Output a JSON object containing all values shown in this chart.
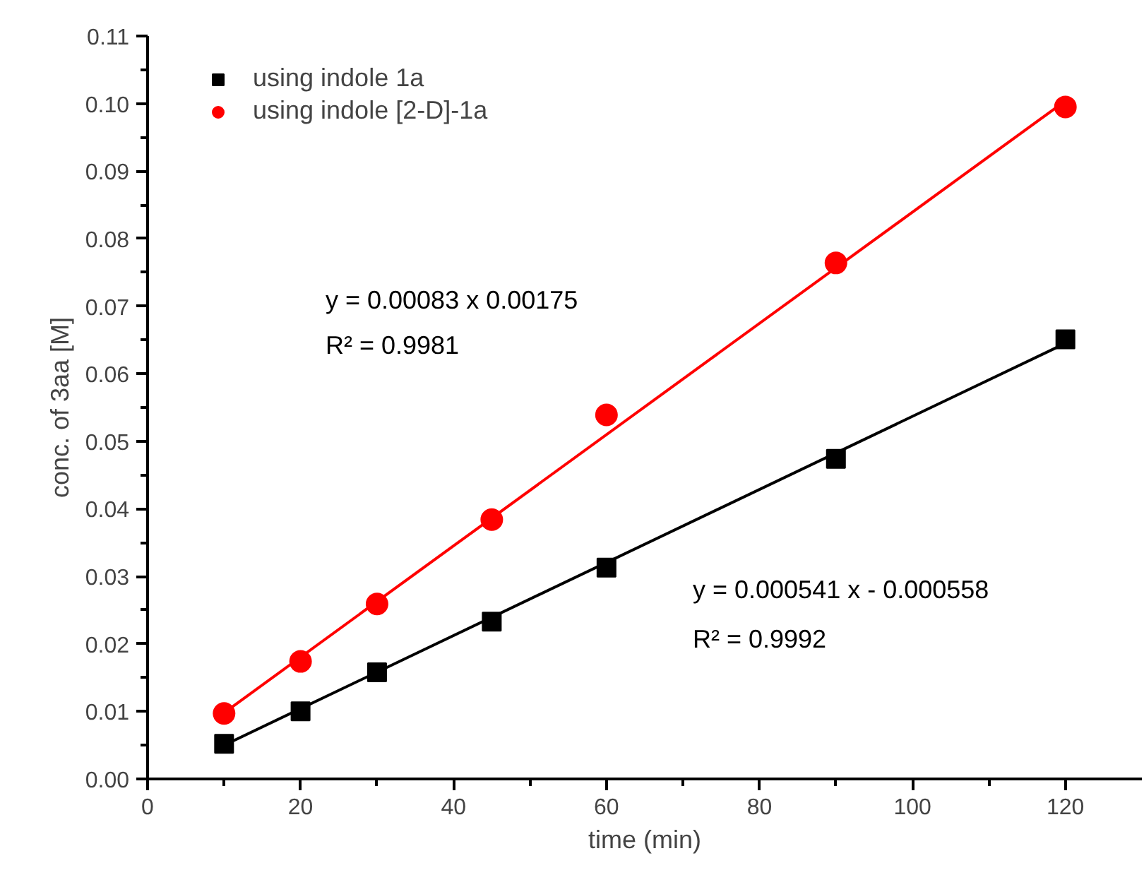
{
  "chart_data": {
    "type": "scatter",
    "xlabel": "time (min)",
    "ylabel": "conc. of 3aa [M]",
    "xlim": [
      0,
      130
    ],
    "ylim": [
      0,
      0.11
    ],
    "xticks": [
      0,
      20,
      40,
      60,
      80,
      100,
      120
    ],
    "yticks": [
      {
        "value": 0,
        "label": "0.00"
      },
      {
        "value": 0.01,
        "label": "0.01"
      },
      {
        "value": 0.02,
        "label": "0.02"
      },
      {
        "value": 0.03,
        "label": "0.03"
      },
      {
        "value": 0.04,
        "label": "0.04"
      },
      {
        "value": 0.05,
        "label": "0.05"
      },
      {
        "value": 0.06,
        "label": "0.06"
      },
      {
        "value": 0.07,
        "label": "0.07"
      },
      {
        "value": 0.08,
        "label": "0.08"
      },
      {
        "value": 0.09,
        "label": "0.09"
      },
      {
        "value": 0.1,
        "label": "0.10"
      },
      {
        "value": 0.11,
        "label": "0.11"
      }
    ],
    "x": [
      10,
      20,
      30,
      45,
      60,
      90,
      120
    ],
    "series": [
      {
        "name": "using indole 1a",
        "color": "#000000",
        "marker": "square",
        "values": [
          0.0052,
          0.01,
          0.0158,
          0.0233,
          0.0313,
          0.0474,
          0.0651
        ]
      },
      {
        "name": "using indole [2-D]-1a",
        "color": "#ff0000",
        "marker": "circle",
        "values": [
          0.0097,
          0.0174,
          0.0259,
          0.0384,
          0.0539,
          0.0764,
          0.0995
        ]
      },
      {
        "type": "line",
        "color": "#000000",
        "values": [
          0.005,
          null,
          null,
          null,
          null,
          null,
          0.0645
        ]
      },
      {
        "type": "line",
        "color": "#ff0000",
        "values": [
          0.0098,
          null,
          null,
          null,
          null,
          null,
          0.1004
        ]
      }
    ],
    "annotations": [
      "y = 0.00083 x 0.00175",
      "R² = 0.9981",
      "y = 0.000541 x - 0.000558",
      "R² = 0.9992"
    ],
    "legend": "top left",
    "grid": false
  }
}
